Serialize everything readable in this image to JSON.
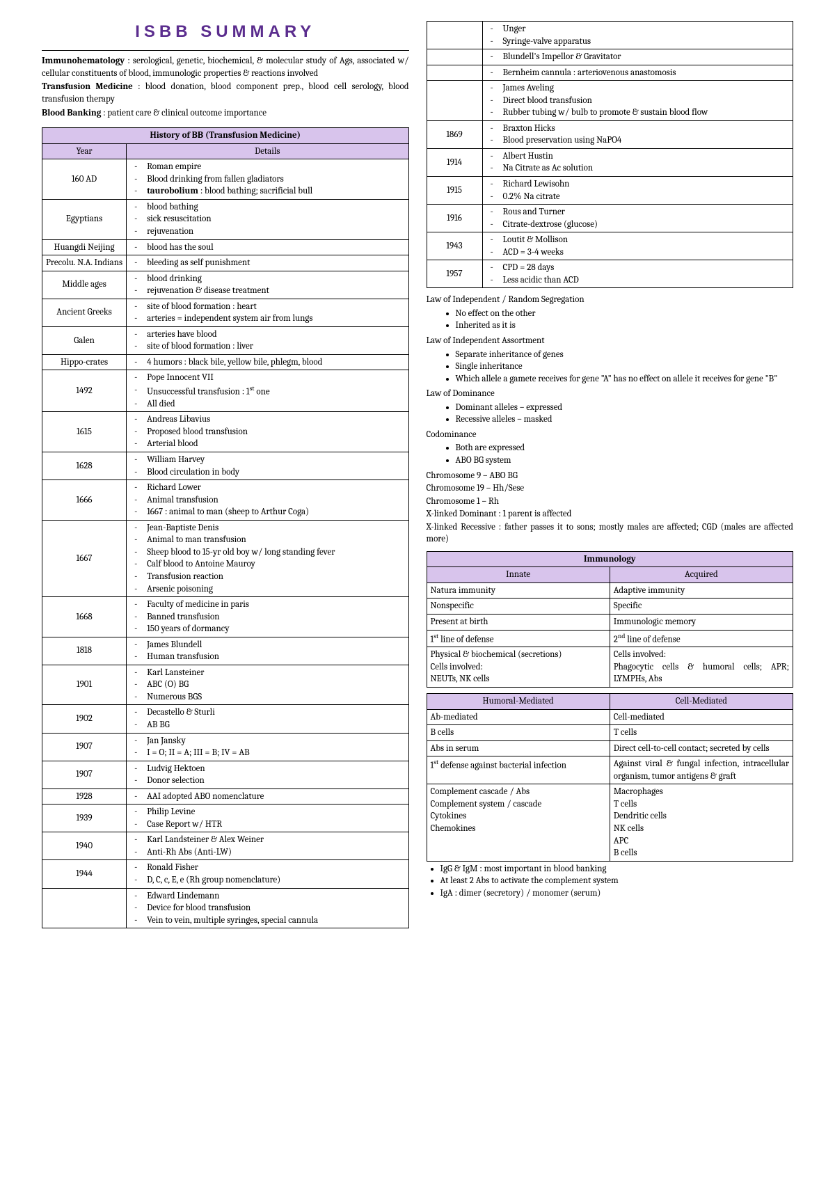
{
  "title": "ISBB SUMMARY",
  "definitions": [
    {
      "term": "Immunohematology",
      "text": " : serological, genetic, biochemical, & molecular study of Ags, associated w/ cellular constituents of blood, immunologic properties & reactions involved"
    },
    {
      "term": "Transfusion Medicine",
      "text": " : blood donation, blood component prep., blood cell serology, blood transfusion therapy"
    },
    {
      "term": "Blood Banking",
      "text": " : patient care & clinical outcome importance"
    }
  ],
  "history": {
    "title": "History of BB (Transfusion Medicine)",
    "col1": "Year",
    "col2": "Details",
    "rows": [
      {
        "year": "160 AD",
        "items": [
          "Roman empire",
          "Blood drinking from fallen gladiators",
          "<b>taurobolium</b> : blood bathing; sacrificial bull"
        ]
      },
      {
        "year": "Egyptians",
        "items": [
          "blood bathing",
          "sick resuscitation",
          "rejuvenation"
        ]
      },
      {
        "year": "Huangdi Neijing",
        "items": [
          "blood has the soul"
        ]
      },
      {
        "year": "Precolu. N.A. Indians",
        "items": [
          "bleeding as self punishment"
        ]
      },
      {
        "year": "Middle ages",
        "items": [
          "blood drinking",
          "rejuvenation & disease treatment"
        ]
      },
      {
        "year": "Ancient Greeks",
        "items": [
          "site of blood formation : heart",
          "arteries = independent system air from lungs"
        ]
      },
      {
        "year": "Galen",
        "items": [
          "arteries have blood",
          "site of blood formation : liver"
        ]
      },
      {
        "year": "Hippo-crates",
        "items": [
          "4 humors : black bile, yellow bile, phlegm, blood"
        ]
      },
      {
        "year": "1492",
        "items": [
          "Pope Innocent VII",
          "Unsuccessful transfusion : 1<sup>st</sup> one",
          "All died"
        ]
      },
      {
        "year": "1615",
        "items": [
          "Andreas Libavius",
          "Proposed blood transfusion",
          "Arterial blood"
        ]
      },
      {
        "year": "1628",
        "items": [
          "William Harvey",
          "Blood circulation in body"
        ]
      },
      {
        "year": "1666",
        "items": [
          "Richard Lower",
          "Animal transfusion",
          "1667 : animal to man (sheep to Arthur Coga)"
        ]
      },
      {
        "year": "1667",
        "items": [
          "Jean-Baptiste Denis",
          "Animal to man transfusion",
          "Sheep blood to 15-yr old boy w/ long standing fever",
          "Calf blood to Antoine Mauroy",
          "Transfusion reaction",
          "Arsenic poisoning"
        ]
      },
      {
        "year": "1668",
        "items": [
          "Faculty of medicine in paris",
          "Banned transfusion",
          "150 years of dormancy"
        ]
      },
      {
        "year": "1818",
        "items": [
          "James Blundell",
          "Human transfusion"
        ]
      },
      {
        "year": "1901",
        "items": [
          "Karl Lansteiner",
          "ABC (O) BG",
          "Numerous BGS"
        ]
      },
      {
        "year": "1902",
        "items": [
          "Decastello & Sturli",
          "AB BG"
        ]
      },
      {
        "year": "1907",
        "items": [
          "Jan Jansky",
          "I = O; II = A; III = B; IV = AB"
        ]
      },
      {
        "year": "1907",
        "items": [
          "Ludvig Hektoen",
          "Donor selection"
        ]
      },
      {
        "year": "1928",
        "items": [
          "AAI adopted ABO nomenclature"
        ]
      },
      {
        "year": "1939",
        "items": [
          "Philip Levine",
          "Case Report w/ HTR"
        ]
      },
      {
        "year": "1940",
        "items": [
          "Karl Landsteiner & Alex Weiner",
          "Anti-Rh Abs (Anti-LW)"
        ]
      },
      {
        "year": "1944",
        "items": [
          "Ronald Fisher",
          "D, C, c, E, e (Rh group nomenclature)"
        ]
      },
      {
        "year": "",
        "items": [
          "Edward Lindemann",
          "Device for blood transfusion",
          "Vein to vein, multiple syringes, special cannula"
        ]
      }
    ],
    "rows2": [
      {
        "year": "",
        "items": [
          "Unger",
          "Syringe-valve apparatus"
        ]
      },
      {
        "year": "",
        "items": [
          "Blundell's Impellor & Gravitator"
        ]
      },
      {
        "year": "",
        "items": [
          "Bernheim cannula : arteriovenous anastomosis"
        ]
      },
      {
        "year": "",
        "items": [
          "James Aveling",
          "Direct blood transfusion",
          "Rubber tubing w/ bulb to promote & sustain blood flow"
        ]
      },
      {
        "year": "1869",
        "items": [
          "Braxton Hicks",
          "Blood preservation using NaPO4"
        ]
      },
      {
        "year": "1914",
        "items": [
          "Albert Hustin",
          "Na Citrate as Ac solution"
        ]
      },
      {
        "year": "1915",
        "items": [
          "Richard Lewisohn",
          "0.2% Na citrate"
        ]
      },
      {
        "year": "1916",
        "items": [
          "Rous and Turner",
          "Citrate-dextrose (glucose)"
        ]
      },
      {
        "year": "1943",
        "items": [
          "Loutit & Mollison",
          "ACD = 3-4 weeks"
        ]
      },
      {
        "year": "1957",
        "items": [
          "CPD = 28 days",
          "Less acidic than ACD"
        ]
      }
    ]
  },
  "laws": [
    {
      "heading": "Law of Independent / Random Segregation",
      "bullets": [
        "No effect on the other",
        "Inherited as it is"
      ]
    },
    {
      "heading": "Law of Independent Assortment",
      "bullets": [
        "Separate inheritance of genes",
        "Single inheritance",
        "Which allele a gamete receives for gene \"A\" has no effect on allele it receives for gene \"B\""
      ]
    },
    {
      "heading": "Law of Dominance",
      "bullets": [
        "Dominant alleles – expressed",
        "Recessive alleles – masked"
      ]
    },
    {
      "heading": "Codominance",
      "bullets": [
        "Both are expressed",
        "ABO BG system"
      ]
    }
  ],
  "chromo": [
    "Chromosome 9 – ABO BG",
    "Chromosome 19 – Hh/Sese",
    "Chromosome 1 – Rh",
    "X-linked Dominant : 1 parent is affected",
    "X-linked Recessive : father passes it to sons; mostly males are affected; CGD (males are affected more)"
  ],
  "immuno": {
    "title": "Immunology",
    "h1": "Innate",
    "h2": "Acquired",
    "rows": [
      [
        "Natura immunity",
        "Adaptive immunity"
      ],
      [
        "Nonspecific",
        "Specific"
      ],
      [
        "Present at birth",
        "Immunologic memory"
      ],
      [
        "1<sup>st</sup> line of defense",
        "2<sup>nd</sup> line of defense"
      ],
      [
        "Physical & biochemical (secretions)<br>Cells involved:<br>NEUTs, NK cells",
        "Cells involved:<br>Phagocytic cells & humoral cells; APR; LYMPHs, Abs"
      ]
    ]
  },
  "mediated": {
    "h1": "Humoral-Mediated",
    "h2": "Cell-Mediated",
    "rows": [
      [
        "Ab-mediated",
        "Cell-mediated"
      ],
      [
        "B cells",
        "T cells"
      ],
      [
        "Abs in serum",
        "Direct cell-to-cell contact; secreted by cells"
      ],
      [
        "1<sup>st</sup> defense against bacterial infection",
        "Against viral & fungal infection, intracellular organism, tumor antigens & graft"
      ],
      [
        "Complement cascade / Abs<br>Complement system / cascade<br>Cytokines<br>Chemokines",
        "Macrophages<br>T cells<br>Dendritic cells<br>NK cells<br>APC<br>B cells"
      ]
    ]
  },
  "footer": [
    "IgG & IgM : most important in blood banking",
    "At least 2 Abs to activate the complement system",
    "IgA : dimer (secretory) / monomer (serum)"
  ]
}
